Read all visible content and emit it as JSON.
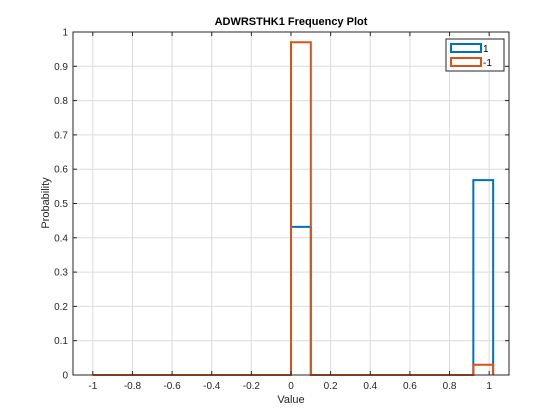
{
  "chart_data": {
    "type": "bar",
    "style": "stairs-histogram",
    "title": "ADWRSTHK1 Frequency Plot",
    "xlabel": "Value",
    "ylabel": "Probability",
    "xlim": [
      -1.1,
      1.1
    ],
    "ylim": [
      0,
      1
    ],
    "xticks": [
      -1,
      -0.8,
      -0.6,
      -0.4,
      -0.2,
      0,
      0.2,
      0.4,
      0.6,
      0.8,
      1
    ],
    "xtick_labels": [
      "-1",
      "-0.8",
      "-0.6",
      "-0.4",
      "-0.2",
      "0",
      "0.2",
      "0.4",
      "0.6",
      "0.8",
      "1"
    ],
    "yticks": [
      0,
      0.1,
      0.2,
      0.3,
      0.4,
      0.5,
      0.6,
      0.7,
      0.8,
      0.9,
      1
    ],
    "ytick_labels": [
      "0",
      "0.1",
      "0.2",
      "0.3",
      "0.4",
      "0.5",
      "0.6",
      "0.7",
      "0.8",
      "0.9",
      "1"
    ],
    "grid": true,
    "legend_position": "top-right",
    "bins": {
      "edges": [
        -1,
        -0.9,
        -0.8,
        -0.7,
        -0.6,
        -0.5,
        -0.4,
        -0.3,
        -0.2,
        -0.1,
        0,
        0.1,
        0.2,
        0.3,
        0.4,
        0.5,
        0.6,
        0.7,
        0.8,
        0.9,
        1.0
      ]
    },
    "series": [
      {
        "name": "1",
        "color": "#0072BD",
        "edges": [
          -1,
          0.0,
          0.1,
          0.92,
          1.02
        ],
        "values": [
          0,
          0.432,
          0,
          0.568
        ]
      },
      {
        "name": "-1",
        "color": "#D95319",
        "edges": [
          -1,
          0.0,
          0.1,
          0.92,
          1.02
        ],
        "values": [
          0,
          0.97,
          0,
          0.03
        ]
      }
    ]
  }
}
